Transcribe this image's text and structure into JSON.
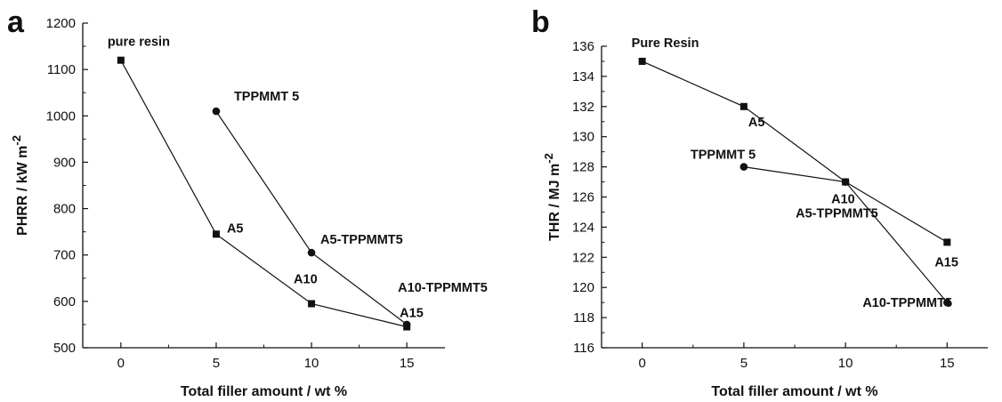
{
  "chart_data": [
    {
      "type": "line",
      "panel_label": "a",
      "xlabel": "Total filler amount / wt %",
      "ylabel": "PHRR / kW m",
      "ylabel_superscript": "-2",
      "xlim": [
        -2,
        17
      ],
      "ylim": [
        500,
        1200
      ],
      "xticks": [
        0,
        5,
        10,
        15
      ],
      "yticks": [
        500,
        600,
        700,
        800,
        900,
        1000,
        1100,
        1200
      ],
      "grid": false,
      "series": [
        {
          "marker": "square",
          "x": [
            0,
            5,
            10,
            15
          ],
          "y": [
            1120,
            745,
            595,
            545
          ]
        },
        {
          "marker": "circle",
          "x": [
            5,
            10,
            15
          ],
          "y": [
            1010,
            705,
            550
          ]
        }
      ],
      "annotations": [
        {
          "text": "pure resin",
          "x": 0,
          "y": 1120,
          "dx": -15,
          "dy": -16
        },
        {
          "text": "A5",
          "x": 5,
          "y": 745,
          "dx": 12,
          "dy": -2
        },
        {
          "text": "A10",
          "x": 10,
          "y": 595,
          "dx": -20,
          "dy": -23
        },
        {
          "text": "A15",
          "x": 15,
          "y": 545,
          "dx": -8,
          "dy": -11
        },
        {
          "text": "TPPMMT 5",
          "x": 5,
          "y": 1010,
          "dx": 20,
          "dy": -12
        },
        {
          "text": "A5-TPPMMT5",
          "x": 10,
          "y": 705,
          "dx": 10,
          "dy": -10
        },
        {
          "text": "A10-TPPMMT5",
          "x": 15,
          "y": 550,
          "dx": -10,
          "dy": -37
        }
      ]
    },
    {
      "type": "line",
      "panel_label": "b",
      "xlabel": "Total filler amount / wt %",
      "ylabel": "THR / MJ m",
      "ylabel_superscript": "-2",
      "xlim": [
        -2,
        17
      ],
      "ylim": [
        116,
        136
      ],
      "xticks": [
        0,
        5,
        10,
        15
      ],
      "yticks": [
        116,
        118,
        120,
        122,
        124,
        126,
        128,
        130,
        132,
        134,
        136
      ],
      "grid": false,
      "series": [
        {
          "marker": "square",
          "x": [
            0,
            5,
            10,
            15
          ],
          "y": [
            135,
            132,
            127,
            123
          ]
        },
        {
          "marker": "circle",
          "x": [
            5,
            10,
            15
          ],
          "y": [
            128,
            127,
            119
          ]
        }
      ],
      "annotations": [
        {
          "text": "Pure Resin",
          "x": 0,
          "y": 135,
          "dx": -12,
          "dy": -16
        },
        {
          "text": "A5",
          "x": 5,
          "y": 132,
          "dx": 5,
          "dy": 22
        },
        {
          "text": "A10",
          "x": 10,
          "y": 127,
          "dx": -16,
          "dy": 24
        },
        {
          "text": "A15",
          "x": 15,
          "y": 123,
          "dx": -14,
          "dy": 27
        },
        {
          "text": "TPPMMT 5",
          "x": 5,
          "y": 128,
          "dx": -60,
          "dy": -9
        },
        {
          "text": "A5-TPPMMT5",
          "x": 10,
          "y": 127,
          "dx": -56,
          "dy": 40
        },
        {
          "text": "A10-TPPMMT5",
          "x": 15,
          "y": 119,
          "dx": -95,
          "dy": 5
        }
      ]
    }
  ]
}
